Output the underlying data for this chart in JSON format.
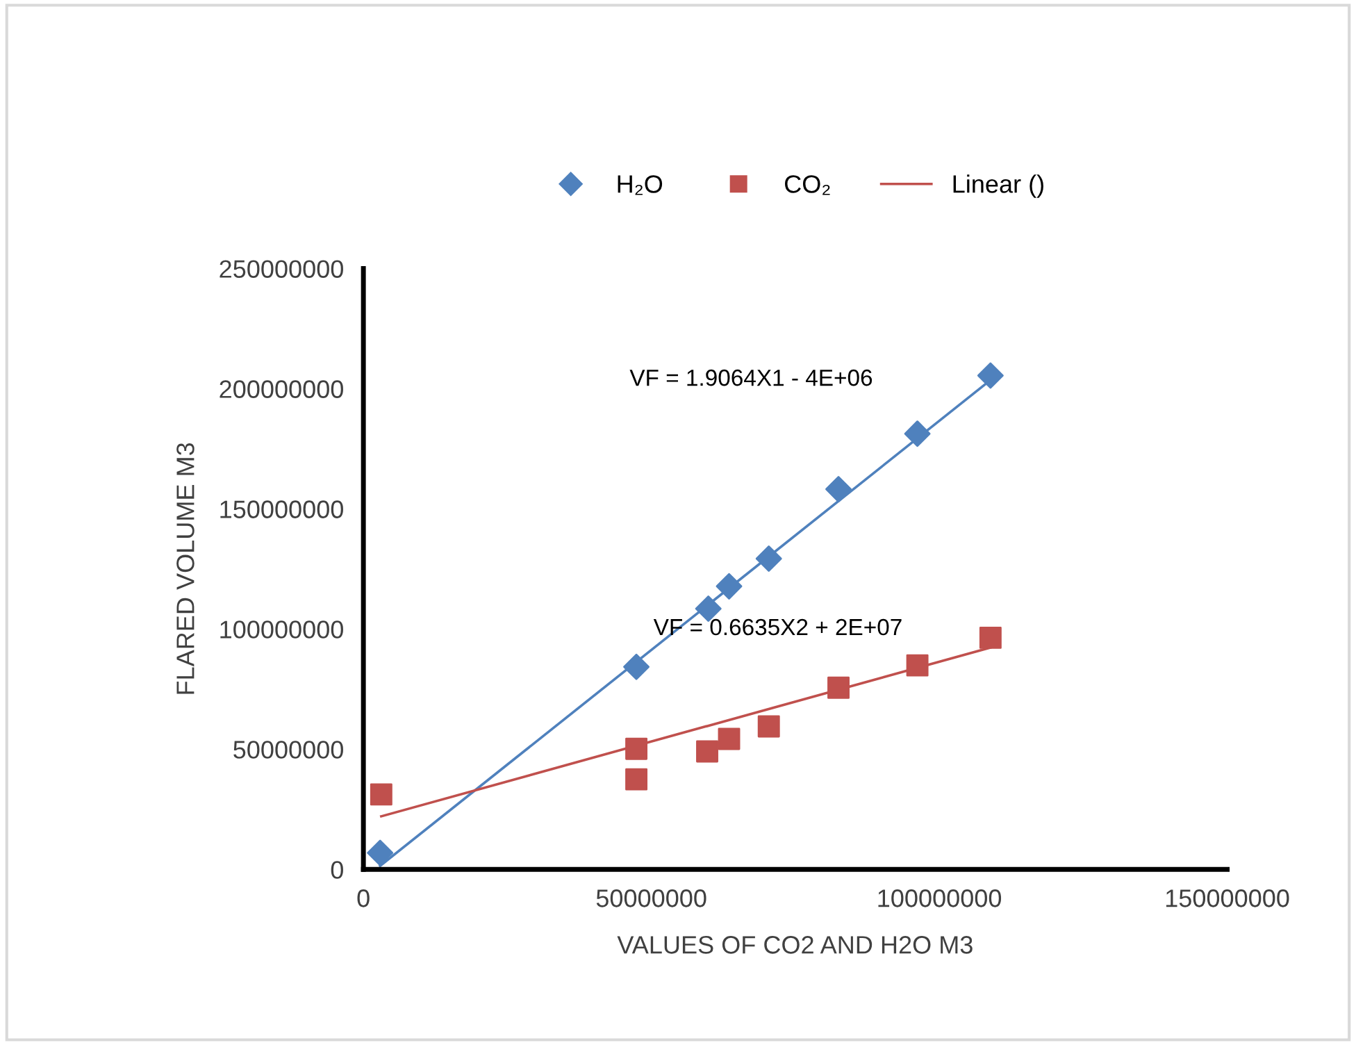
{
  "chart_data": {
    "type": "scatter",
    "xlabel": "VALUES OF CO2 AND H2O M3",
    "ylabel": "FLARED VOLUME M3",
    "xlim": [
      0,
      150000000
    ],
    "xticks": [
      0,
      50000000,
      100000000,
      150000000
    ],
    "ylim": [
      0,
      250000000
    ],
    "yticks": [
      0,
      50000000,
      100000000,
      150000000,
      200000000,
      250000000
    ],
    "grid": false,
    "legend": "top",
    "series": [
      {
        "name": "H₂O",
        "color": "#4f81bd",
        "marker": "diamond",
        "x": [
          2900000,
          47400000,
          59900000,
          63500000,
          70400000,
          82500000,
          96200000,
          108900000
        ],
        "values": [
          6900000,
          84300000,
          108500000,
          117800000,
          129300000,
          158200000,
          181300000,
          205500000
        ]
      },
      {
        "name": "CO₂",
        "color": "#c0504d",
        "marker": "square",
        "x": [
          3100000,
          47400000,
          47400000,
          59700000,
          63500000,
          70400000,
          82500000,
          96200000,
          108900000
        ],
        "values": [
          31200000,
          50200000,
          37500000,
          49100000,
          54300000,
          59500000,
          75600000,
          84900000,
          96400000
        ]
      },
      {
        "type": "line",
        "color": "#4f81bd",
        "x": [
          2900000,
          108900000
        ],
        "values": [
          1500000,
          203600000
        ]
      },
      {
        "name": "Linear ()",
        "type": "line",
        "color": "#c0504d",
        "x": [
          3100000,
          108900000
        ],
        "values": [
          22100000,
          92300000
        ]
      }
    ],
    "annotations": [
      "VF = 1.9064X1 - 4E+06",
      "VF = 0.6635X2 + 2E+07"
    ]
  }
}
